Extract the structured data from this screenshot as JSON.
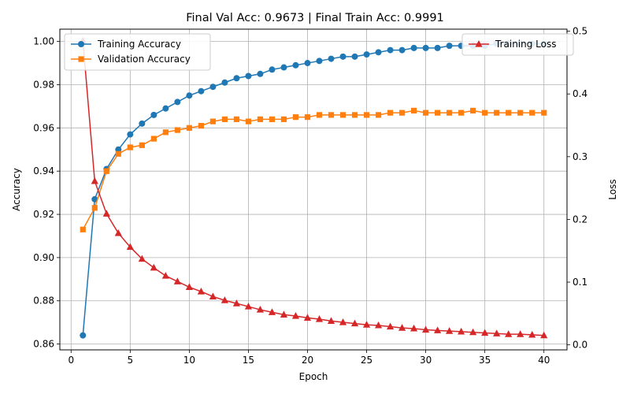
{
  "chart_data": {
    "type": "line",
    "title": "Final Val Acc: 0.9673 | Final Train Acc: 0.9991",
    "xlabel": "Epoch",
    "ylabel_left": "Accuracy",
    "ylabel_right": "Loss",
    "xlim": [
      -0.95,
      41.95
    ],
    "ylim_left": [
      0.8573,
      1.0057
    ],
    "ylim_right": [
      -0.008,
      0.5033
    ],
    "x_ticks": [
      0,
      5,
      10,
      15,
      20,
      25,
      30,
      35,
      40
    ],
    "y_left_ticks": [
      "0.86",
      "0.88",
      "0.90",
      "0.92",
      "0.94",
      "0.96",
      "0.98",
      "1.00"
    ],
    "y_right_ticks": [
      "0.0",
      "0.1",
      "0.2",
      "0.3",
      "0.4",
      "0.5"
    ],
    "grid": true,
    "legend_left_placement": "upper-left",
    "legend_right_placement": "upper-right",
    "x": [
      1,
      2,
      3,
      4,
      5,
      6,
      7,
      8,
      9,
      10,
      11,
      12,
      13,
      14,
      15,
      16,
      17,
      18,
      19,
      20,
      21,
      22,
      23,
      24,
      25,
      26,
      27,
      28,
      29,
      30,
      31,
      32,
      33,
      34,
      35,
      36,
      37,
      38,
      39,
      40
    ],
    "series": [
      {
        "name": "Training Accuracy",
        "axis": "left",
        "color": "#1f77b4",
        "marker": "circle",
        "values": [
          0.864,
          0.927,
          0.941,
          0.95,
          0.957,
          0.962,
          0.966,
          0.969,
          0.972,
          0.975,
          0.977,
          0.979,
          0.981,
          0.983,
          0.984,
          0.985,
          0.987,
          0.988,
          0.989,
          0.99,
          0.991,
          0.992,
          0.993,
          0.993,
          0.994,
          0.995,
          0.996,
          0.996,
          0.997,
          0.997,
          0.997,
          0.998,
          0.998,
          0.998,
          0.998,
          0.999,
          0.999,
          0.999,
          0.999,
          0.999
        ]
      },
      {
        "name": "Validation Accuracy",
        "axis": "left",
        "color": "#ff7f0e",
        "marker": "square",
        "values": [
          0.913,
          0.923,
          0.94,
          0.948,
          0.951,
          0.952,
          0.955,
          0.958,
          0.959,
          0.96,
          0.961,
          0.963,
          0.964,
          0.964,
          0.963,
          0.964,
          0.964,
          0.964,
          0.965,
          0.965,
          0.966,
          0.966,
          0.966,
          0.966,
          0.966,
          0.966,
          0.967,
          0.967,
          0.968,
          0.967,
          0.967,
          0.967,
          0.967,
          0.968,
          0.967,
          0.967,
          0.967,
          0.967,
          0.967,
          0.967
        ]
      },
      {
        "name": "Training Loss",
        "axis": "right",
        "color": "#d62728",
        "marker": "triangle",
        "values": [
          0.485,
          0.261,
          0.209,
          0.178,
          0.156,
          0.137,
          0.123,
          0.11,
          0.101,
          0.092,
          0.085,
          0.077,
          0.071,
          0.066,
          0.061,
          0.056,
          0.052,
          0.048,
          0.046,
          0.043,
          0.041,
          0.038,
          0.036,
          0.034,
          0.032,
          0.031,
          0.029,
          0.027,
          0.026,
          0.024,
          0.023,
          0.022,
          0.021,
          0.02,
          0.019,
          0.018,
          0.017,
          0.017,
          0.016,
          0.015
        ]
      }
    ]
  },
  "colors": {
    "grid": "#b0b0b0",
    "axes": "#000000"
  }
}
